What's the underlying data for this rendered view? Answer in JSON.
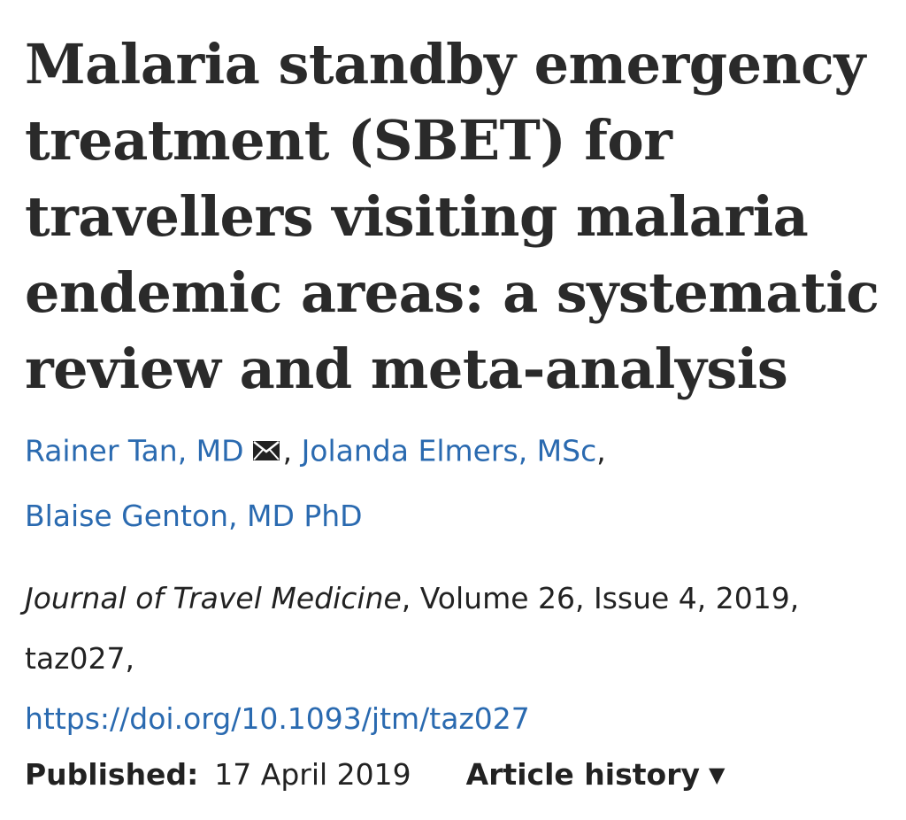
{
  "article": {
    "title": "Malaria standby emergency treatment (SBET) for travellers visiting malaria endemic areas: a systematic review and meta-analysis",
    "authors": [
      {
        "name": "Rainer Tan, MD"
      },
      {
        "name": "Jolanda Elmers, MSc"
      },
      {
        "name": "Blaise Genton, MD PhD"
      }
    ],
    "author_separator": ",",
    "citation": {
      "journal": "Journal of Travel Medicine",
      "rest": ", Volume 26, Issue 4, 2019, taz027,",
      "doi": "https://doi.org/10.1093/jtm/taz027"
    },
    "published": {
      "label": "Published:",
      "date": "17 April 2019"
    },
    "history_label": "Article history",
    "icons": {
      "mail": "mail-icon",
      "caret": "caret-down-icon"
    }
  }
}
